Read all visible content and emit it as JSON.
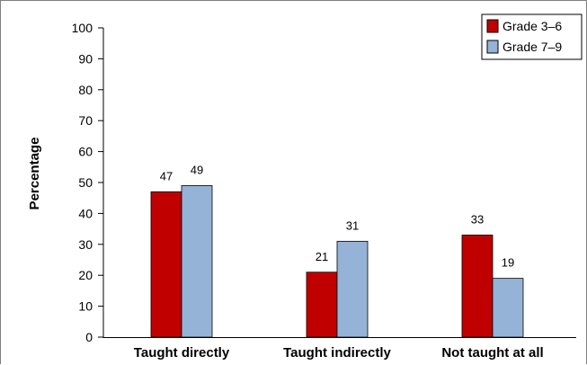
{
  "chart_data": {
    "type": "bar",
    "title": "",
    "xlabel": "",
    "ylabel": "Percentage",
    "ylim": [
      0,
      100
    ],
    "yticks": [
      "0",
      "10",
      "20",
      "30",
      "40",
      "50",
      "60",
      "70",
      "80",
      "90",
      "100"
    ],
    "categories": [
      "Taught directly",
      "Taught indirectly",
      "Not taught at all"
    ],
    "series": [
      {
        "name": "Grade 3–6",
        "values": [
          47,
          21,
          33
        ],
        "color": "#c00000"
      },
      {
        "name": "Grade 7–9",
        "values": [
          49,
          31,
          19
        ],
        "color": "#95b3d7"
      }
    ],
    "grid": false,
    "legend_position": "top-right"
  }
}
